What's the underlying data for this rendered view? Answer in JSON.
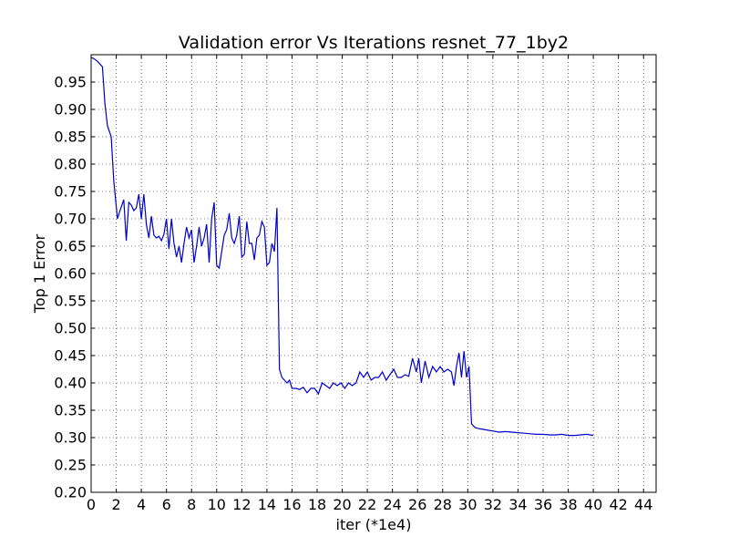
{
  "chart_data": {
    "type": "line",
    "title": "Validation error Vs Iterations resnet_77_1by2",
    "xlabel": "iter (*1e4)",
    "ylabel": "Top 1 Error",
    "xlim": [
      0,
      45
    ],
    "ylim": [
      0.2,
      1.0
    ],
    "xticks": [
      0,
      2,
      4,
      6,
      8,
      10,
      12,
      14,
      16,
      18,
      20,
      22,
      24,
      26,
      28,
      30,
      32,
      34,
      36,
      38,
      40,
      42,
      44
    ],
    "yticks": [
      "0.20",
      "0.25",
      "0.30",
      "0.35",
      "0.40",
      "0.45",
      "0.50",
      "0.55",
      "0.60",
      "0.65",
      "0.70",
      "0.75",
      "0.80",
      "0.85",
      "0.90",
      "0.95"
    ],
    "grid": true,
    "series_color": "#0000cc",
    "x": [
      0.0,
      0.2,
      0.5,
      0.9,
      1.1,
      1.3,
      1.6,
      1.8,
      2.1,
      2.3,
      2.6,
      2.8,
      3.0,
      3.2,
      3.4,
      3.6,
      3.8,
      4.0,
      4.2,
      4.4,
      4.6,
      4.8,
      5.0,
      5.2,
      5.4,
      5.6,
      5.8,
      6.0,
      6.2,
      6.4,
      6.6,
      6.8,
      7.0,
      7.2,
      7.4,
      7.6,
      7.8,
      8.0,
      8.2,
      8.4,
      8.6,
      8.8,
      9.0,
      9.2,
      9.4,
      9.6,
      9.8,
      10.0,
      10.2,
      10.4,
      10.6,
      10.8,
      11.0,
      11.2,
      11.4,
      11.6,
      11.8,
      12.0,
      12.2,
      12.4,
      12.6,
      12.8,
      13.0,
      13.2,
      13.4,
      13.6,
      13.8,
      14.0,
      14.2,
      14.4,
      14.6,
      14.8,
      15.0,
      15.2,
      15.6,
      15.8,
      16.0,
      16.3,
      16.6,
      16.9,
      17.2,
      17.5,
      17.8,
      18.1,
      18.4,
      18.7,
      19.0,
      19.3,
      19.6,
      19.9,
      20.2,
      20.5,
      20.8,
      21.1,
      21.4,
      21.7,
      22.0,
      22.3,
      22.6,
      22.9,
      23.2,
      23.5,
      23.8,
      24.1,
      24.4,
      24.7,
      25.0,
      25.3,
      25.6,
      25.9,
      26.1,
      26.3,
      26.6,
      26.9,
      27.2,
      27.5,
      27.8,
      28.1,
      28.4,
      28.7,
      28.9,
      29.1,
      29.3,
      29.5,
      29.7,
      29.9,
      30.1,
      30.3,
      30.6,
      31.0,
      31.5,
      32.0,
      32.5,
      33.0,
      33.5,
      34.0,
      34.5,
      35.0,
      35.5,
      36.0,
      36.5,
      37.0,
      37.5,
      38.0,
      38.5,
      39.0,
      39.5,
      40.0
    ],
    "y": [
      0.995,
      0.993,
      0.988,
      0.978,
      0.91,
      0.87,
      0.85,
      0.77,
      0.7,
      0.715,
      0.735,
      0.66,
      0.73,
      0.725,
      0.715,
      0.72,
      0.745,
      0.7,
      0.745,
      0.69,
      0.665,
      0.705,
      0.67,
      0.665,
      0.668,
      0.66,
      0.672,
      0.7,
      0.645,
      0.7,
      0.655,
      0.63,
      0.65,
      0.62,
      0.655,
      0.685,
      0.665,
      0.68,
      0.62,
      0.65,
      0.685,
      0.65,
      0.665,
      0.69,
      0.62,
      0.7,
      0.73,
      0.615,
      0.61,
      0.64,
      0.67,
      0.68,
      0.71,
      0.665,
      0.655,
      0.67,
      0.705,
      0.63,
      0.635,
      0.695,
      0.655,
      0.655,
      0.625,
      0.665,
      0.67,
      0.695,
      0.685,
      0.615,
      0.62,
      0.655,
      0.64,
      0.72,
      0.425,
      0.41,
      0.4,
      0.405,
      0.39,
      0.39,
      0.388,
      0.392,
      0.382,
      0.39,
      0.39,
      0.38,
      0.4,
      0.395,
      0.39,
      0.4,
      0.395,
      0.4,
      0.39,
      0.4,
      0.395,
      0.4,
      0.42,
      0.41,
      0.42,
      0.405,
      0.41,
      0.41,
      0.42,
      0.405,
      0.415,
      0.425,
      0.41,
      0.41,
      0.415,
      0.412,
      0.445,
      0.42,
      0.445,
      0.4,
      0.44,
      0.41,
      0.43,
      0.42,
      0.43,
      0.42,
      0.425,
      0.42,
      0.395,
      0.43,
      0.455,
      0.41,
      0.458,
      0.41,
      0.43,
      0.325,
      0.318,
      0.316,
      0.314,
      0.312,
      0.31,
      0.311,
      0.31,
      0.309,
      0.308,
      0.307,
      0.306,
      0.306,
      0.305,
      0.305,
      0.306,
      0.304,
      0.304,
      0.305,
      0.306,
      0.304
    ]
  }
}
